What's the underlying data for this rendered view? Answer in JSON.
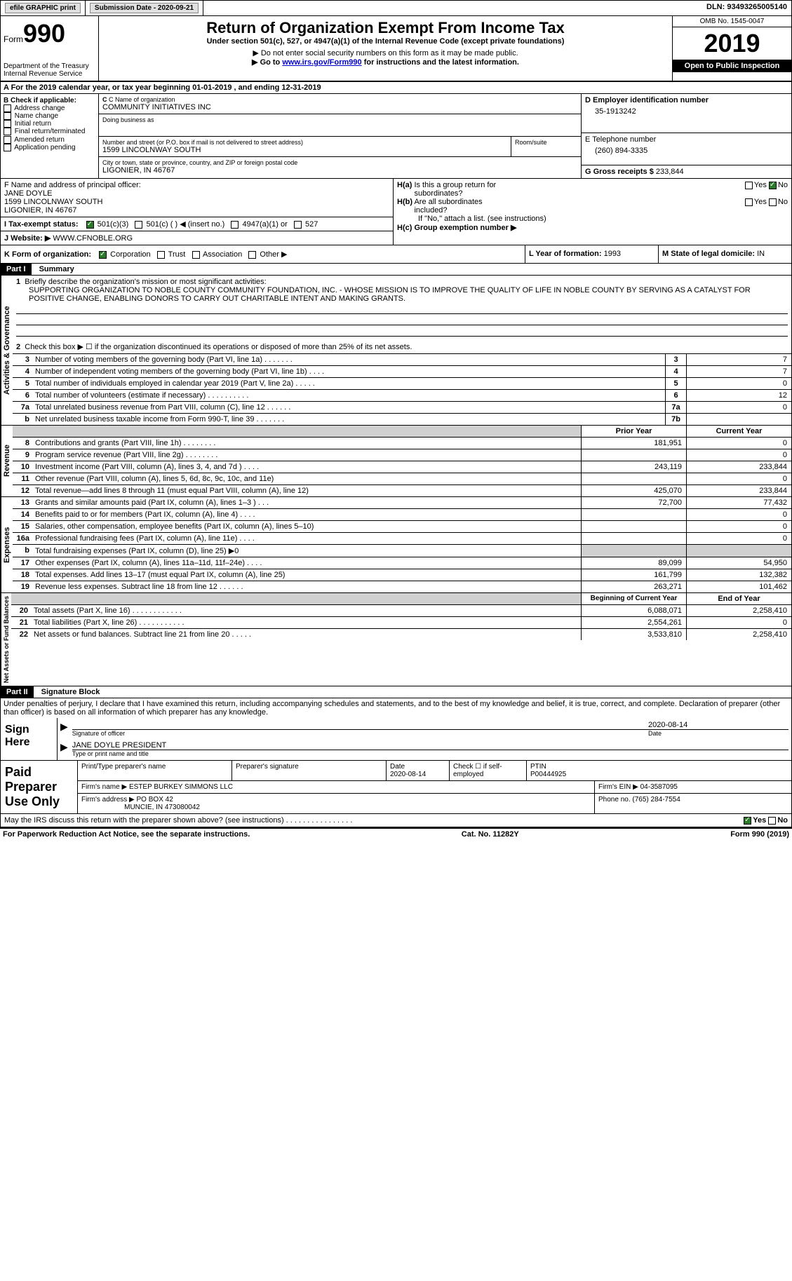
{
  "topbar": {
    "efile": "efile GRAPHIC print",
    "submission": "Submission Date - 2020-09-21",
    "dln": "DLN: 93493265005140"
  },
  "header": {
    "form_word": "Form",
    "form_num": "990",
    "title": "Return of Organization Exempt From Income Tax",
    "subtitle": "Under section 501(c), 527, or 4947(a)(1) of the Internal Revenue Code (except private foundations)",
    "note1": "▶ Do not enter social security numbers on this form as it may be made public.",
    "note2_pre": "▶ Go to ",
    "note2_link": "www.irs.gov/Form990",
    "note2_post": " for instructions and the latest information.",
    "dept": "Department of the Treasury\nInternal Revenue Service",
    "omb": "OMB No. 1545-0047",
    "year": "2019",
    "open": "Open to Public Inspection"
  },
  "sectionA": "A For the 2019 calendar year, or tax year beginning 01-01-2019    , and ending 12-31-2019",
  "boxB": {
    "title": "B Check if applicable:",
    "items": [
      "Address change",
      "Name change",
      "Initial return",
      "Final return/terminated",
      "Amended return",
      "Application pending"
    ]
  },
  "boxC": {
    "label": "C Name of organization",
    "name": "COMMUNITY INITIATIVES INC",
    "dba_label": "Doing business as",
    "addr_label": "Number and street (or P.O. box if mail is not delivered to street address)",
    "room_label": "Room/suite",
    "addr": "1599 LINCOLNWAY SOUTH",
    "city_label": "City or town, state or province, country, and ZIP or foreign postal code",
    "city": "LIGONIER, IN  46767"
  },
  "boxD": {
    "label": "D Employer identification number",
    "value": "35-1913242"
  },
  "boxE": {
    "label": "E Telephone number",
    "value": "(260) 894-3335"
  },
  "boxG": {
    "label": "G Gross receipts $",
    "value": "233,844"
  },
  "boxF": {
    "label": "F  Name and address of principal officer:",
    "name": "JANE DOYLE",
    "addr1": "1599 LINCOLNWAY SOUTH",
    "addr2": "LIGONIER, IN  46767"
  },
  "boxH": {
    "a_label": "H(a)  Is this a group return for subordinates?",
    "b_label": "H(b)  Are all subordinates included?",
    "b_note": "If \"No,\" attach a list. (see instructions)",
    "c_label": "H(c)  Group exemption number ▶",
    "yes": "Yes",
    "no": "No"
  },
  "boxI": {
    "label": "I  Tax-exempt status:",
    "opts": [
      "501(c)(3)",
      "501(c) (  ) ◀ (insert no.)",
      "4947(a)(1) or",
      "527"
    ]
  },
  "boxJ": {
    "label": "J  Website: ▶",
    "value": "WWW.CFNOBLE.ORG"
  },
  "boxK": {
    "label": "K Form of organization:",
    "opts": [
      "Corporation",
      "Trust",
      "Association",
      "Other ▶"
    ]
  },
  "boxL": {
    "label": "L Year of formation:",
    "value": "1993"
  },
  "boxM": {
    "label": "M State of legal domicile:",
    "value": "IN"
  },
  "part1": {
    "header": "Part I",
    "title": "Summary",
    "line1_label": "Briefly describe the organization's mission or most significant activities:",
    "mission": "SUPPORTING ORGANIZATION TO NOBLE COUNTY COMMUNITY FOUNDATION, INC. - WHOSE MISSION IS TO IMPROVE THE QUALITY OF LIFE IN NOBLE COUNTY BY SERVING AS A CATALYST FOR POSITIVE CHANGE, ENABLING DONORS TO CARRY OUT CHARITABLE INTENT AND MAKING GRANTS.",
    "line2": "Check this box ▶ ☐  if the organization discontinued its operations or disposed of more than 25% of its net assets.",
    "vlabels": {
      "gov": "Activities & Governance",
      "rev": "Revenue",
      "exp": "Expenses",
      "net": "Net Assets or Fund Balances"
    },
    "gov_lines": [
      {
        "n": "3",
        "d": "Number of voting members of the governing body (Part VI, line 1a)  .   .   .   .   .   .   .",
        "b": "3",
        "v": "7"
      },
      {
        "n": "4",
        "d": "Number of independent voting members of the governing body (Part VI, line 1b)  .   .   .   .",
        "b": "4",
        "v": "7"
      },
      {
        "n": "5",
        "d": "Total number of individuals employed in calendar year 2019 (Part V, line 2a)  .   .   .   .   .",
        "b": "5",
        "v": "0"
      },
      {
        "n": "6",
        "d": "Total number of volunteers (estimate if necessary)   .   .   .   .   .   .   .   .   .   .",
        "b": "6",
        "v": "12"
      },
      {
        "n": "7a",
        "d": "Total unrelated business revenue from Part VIII, column (C), line 12  .   .   .   .   .   .",
        "b": "7a",
        "v": "0"
      },
      {
        "n": "b",
        "d": "Net unrelated business taxable income from Form 990-T, line 39   .   .   .   .   .   .   .",
        "b": "7b",
        "v": ""
      }
    ],
    "col_headers": {
      "prior": "Prior Year",
      "current": "Current Year"
    },
    "rev_lines": [
      {
        "n": "8",
        "d": "Contributions and grants (Part VIII, line 1h)   .   .   .   .   .   .   .   .",
        "p": "181,951",
        "c": "0"
      },
      {
        "n": "9",
        "d": "Program service revenue (Part VIII, line 2g)   .   .   .   .   .   .   .   .",
        "p": "",
        "c": "0"
      },
      {
        "n": "10",
        "d": "Investment income (Part VIII, column (A), lines 3, 4, and 7d )   .   .   .   .",
        "p": "243,119",
        "c": "233,844"
      },
      {
        "n": "11",
        "d": "Other revenue (Part VIII, column (A), lines 5, 6d, 8c, 9c, 10c, and 11e)",
        "p": "",
        "c": "0"
      },
      {
        "n": "12",
        "d": "Total revenue—add lines 8 through 11 (must equal Part VIII, column (A), line 12)",
        "p": "425,070",
        "c": "233,844"
      }
    ],
    "exp_lines": [
      {
        "n": "13",
        "d": "Grants and similar amounts paid (Part IX, column (A), lines 1–3 )  .   .   .",
        "p": "72,700",
        "c": "77,432"
      },
      {
        "n": "14",
        "d": "Benefits paid to or for members (Part IX, column (A), line 4)  .   .   .   .",
        "p": "",
        "c": "0"
      },
      {
        "n": "15",
        "d": "Salaries, other compensation, employee benefits (Part IX, column (A), lines 5–10)",
        "p": "",
        "c": "0"
      },
      {
        "n": "16a",
        "d": "Professional fundraising fees (Part IX, column (A), line 11e)  .   .   .   .",
        "p": "",
        "c": "0"
      },
      {
        "n": "b",
        "d": "Total fundraising expenses (Part IX, column (D), line 25) ▶0",
        "p": "GRAY",
        "c": "GRAY"
      },
      {
        "n": "17",
        "d": "Other expenses (Part IX, column (A), lines 11a–11d, 11f–24e)  .   .   .   .",
        "p": "89,099",
        "c": "54,950"
      },
      {
        "n": "18",
        "d": "Total expenses. Add lines 13–17 (must equal Part IX, column (A), line 25)",
        "p": "161,799",
        "c": "132,382"
      },
      {
        "n": "19",
        "d": "Revenue less expenses. Subtract line 18 from line 12  .   .   .   .   .   .",
        "p": "263,271",
        "c": "101,462"
      }
    ],
    "net_headers": {
      "beg": "Beginning of Current Year",
      "end": "End of Year"
    },
    "net_lines": [
      {
        "n": "20",
        "d": "Total assets (Part X, line 16)   .   .   .   .   .   .   .   .   .   .   .   .",
        "p": "6,088,071",
        "c": "2,258,410"
      },
      {
        "n": "21",
        "d": "Total liabilities (Part X, line 26)   .   .   .   .   .   .   .   .   .   .   .",
        "p": "2,554,261",
        "c": "0"
      },
      {
        "n": "22",
        "d": "Net assets or fund balances. Subtract line 21 from line 20  .   .   .   .   .",
        "p": "3,533,810",
        "c": "2,258,410"
      }
    ]
  },
  "part2": {
    "header": "Part II",
    "title": "Signature Block",
    "declaration": "Under penalties of perjury, I declare that I have examined this return, including accompanying schedules and statements, and to the best of my knowledge and belief, it is true, correct, and complete. Declaration of preparer (other than officer) is based on all information of which preparer has any knowledge.",
    "sign_here": "Sign Here",
    "sig_officer": "Signature of officer",
    "sig_date": "2020-08-14",
    "date_label": "Date",
    "officer_name": "JANE DOYLE  PRESIDENT",
    "type_name": "Type or print name and title",
    "paid": "Paid Preparer Use Only",
    "prep_name_label": "Print/Type preparer's name",
    "prep_sig_label": "Preparer's signature",
    "prep_date_label": "Date",
    "prep_date": "2020-08-14",
    "check_if": "Check ☐ if self-employed",
    "ptin_label": "PTIN",
    "ptin": "P00444925",
    "firm_name_label": "Firm's name    ▶",
    "firm_name": "ESTEP BURKEY SIMMONS LLC",
    "firm_ein_label": "Firm's EIN ▶",
    "firm_ein": "04-3587095",
    "firm_addr_label": "Firm's address ▶",
    "firm_addr1": "PO BOX 42",
    "firm_addr2": "MUNCIE, IN  473080042",
    "phone_label": "Phone no.",
    "phone": "(765) 284-7554",
    "discuss": "May the IRS discuss this return with the preparer shown above? (see instructions)   .   .   .   .   .   .   .   .   .   .   .   .   .   .   .   .",
    "yes": "Yes",
    "no": "No"
  },
  "footer": {
    "left": "For Paperwork Reduction Act Notice, see the separate instructions.",
    "mid": "Cat. No. 11282Y",
    "right": "Form 990 (2019)"
  }
}
